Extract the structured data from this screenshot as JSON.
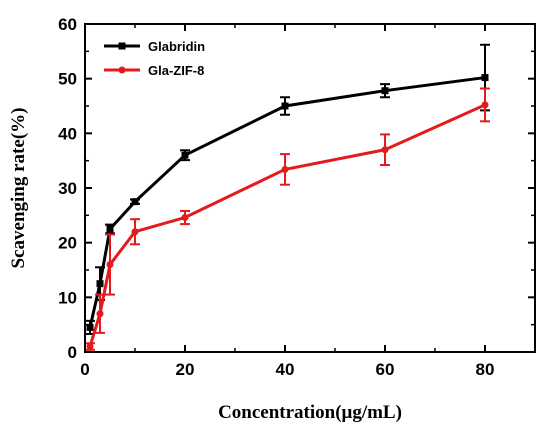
{
  "chart_data": {
    "type": "line",
    "xlabel": "Concentration(μg/mL)",
    "ylabel": "Scavenging rate(%)",
    "xlim": [
      0,
      90
    ],
    "ylim": [
      0,
      60
    ],
    "xticks": [
      0,
      20,
      40,
      60,
      80
    ],
    "yticks": [
      0,
      10,
      20,
      30,
      40,
      50,
      60
    ],
    "x_tick_labels": [
      "0",
      "20",
      "40",
      "60",
      "80"
    ],
    "y_tick_labels": [
      "0",
      "10",
      "20",
      "30",
      "40",
      "50",
      "60"
    ],
    "legend_position": "top-left",
    "grid": false,
    "series": [
      {
        "name": "Glabridin",
        "color": "#000000",
        "marker": "square",
        "x": [
          1,
          3,
          5,
          10,
          20,
          40,
          60,
          80
        ],
        "y": [
          4.5,
          12.5,
          22.5,
          27.5,
          36.0,
          45.0,
          47.8,
          50.2
        ],
        "err": [
          1.2,
          3.0,
          0.8,
          0.4,
          0.9,
          1.6,
          1.2,
          6.0
        ]
      },
      {
        "name": "Gla-ZIF-8",
        "color": "#e41a1c",
        "marker": "circle",
        "x": [
          1,
          3,
          5,
          10,
          20,
          40,
          60,
          80
        ],
        "y": [
          1.0,
          7.0,
          16.0,
          22.0,
          24.6,
          33.4,
          37.0,
          45.2
        ],
        "err": [
          0.6,
          3.5,
          5.5,
          2.3,
          1.2,
          2.8,
          2.8,
          3.0
        ]
      }
    ]
  }
}
